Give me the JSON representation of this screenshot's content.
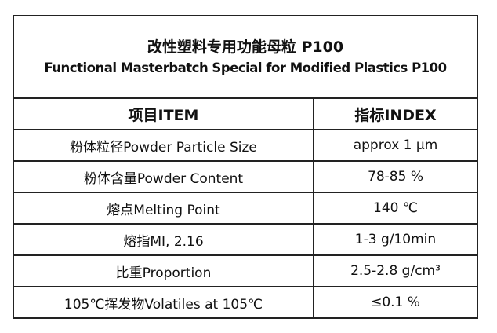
{
  "title": {
    "zh": "改性塑料专用功能母粒 P100",
    "en": "Functional Masterbatch Special for Modified Plastics P100"
  },
  "headers": [
    "项目ITEM",
    "指标INDEX"
  ],
  "rows": [
    [
      "粉体粒径Powder Particle Size",
      "approx 1 μm"
    ],
    [
      "粉体含量Powder Content",
      "78-85 %"
    ],
    [
      "熔点Melting Point",
      "140 ℃"
    ],
    [
      "熔指MI, 2.16",
      "1-3 g/10min"
    ],
    [
      "比重Proportion",
      "2.5-2.8 g/cm³"
    ],
    [
      "105℃挥发物Volatiles at 105℃",
      "≤0.1 %"
    ]
  ]
}
